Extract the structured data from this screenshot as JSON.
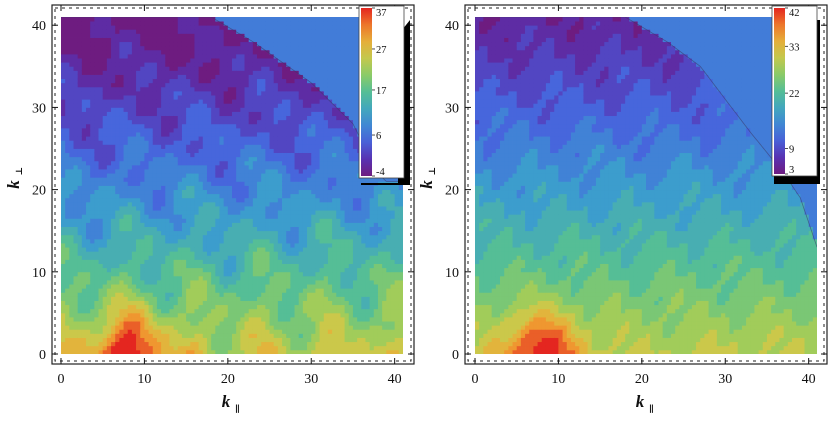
{
  "chart_data": [
    {
      "type": "heatmap",
      "subtype": "contour",
      "title": "",
      "xlabel": "k",
      "xlabel_subscript": "∥",
      "ylabel": "k",
      "ylabel_subscript": "⊥",
      "xlim": [
        0,
        41
      ],
      "ylim": [
        0,
        41
      ],
      "x_ticks": [
        0,
        10,
        20,
        30,
        40
      ],
      "y_ticks": [
        0,
        10,
        20,
        30,
        40
      ],
      "colorbar": {
        "min": -4,
        "max": 37,
        "ticks": [
          37,
          27,
          17,
          6,
          -4
        ],
        "palette": "rainbow"
      },
      "peak": {
        "x": 8,
        "y": 0,
        "value": 37
      },
      "trough_value": -4,
      "domain_edge": [
        [
          0,
          41
        ],
        [
          18,
          41
        ],
        [
          23,
          38
        ],
        [
          30,
          33
        ],
        [
          35,
          28
        ],
        [
          38,
          22
        ],
        [
          39,
          21
        ],
        [
          41,
          21
        ]
      ],
      "features": "value increases toward low k_perp; vertical ridges near k_par = 8, 16, 24"
    },
    {
      "type": "heatmap",
      "subtype": "contour",
      "title": "",
      "xlabel": "k",
      "xlabel_subscript": "∥",
      "ylabel": "k",
      "ylabel_subscript": "⊥",
      "xlim": [
        0,
        41
      ],
      "ylim": [
        0,
        41
      ],
      "x_ticks": [
        0,
        10,
        20,
        30,
        40
      ],
      "y_ticks": [
        0,
        10,
        20,
        30,
        40
      ],
      "colorbar": {
        "min": 3,
        "max": 42,
        "ticks": [
          42,
          33,
          22,
          9,
          3
        ],
        "palette": "rainbow"
      },
      "peak": {
        "x": 8,
        "y": 0,
        "value": 42
      },
      "trough_value": 3,
      "domain_edge": [
        [
          0,
          41
        ],
        [
          18,
          41
        ],
        [
          23,
          38
        ],
        [
          27,
          35
        ],
        [
          33,
          27
        ],
        [
          37,
          22
        ],
        [
          39,
          19
        ],
        [
          41,
          13
        ]
      ],
      "features": "value increases toward low k_perp; contours roughly horizontal with noise"
    }
  ]
}
